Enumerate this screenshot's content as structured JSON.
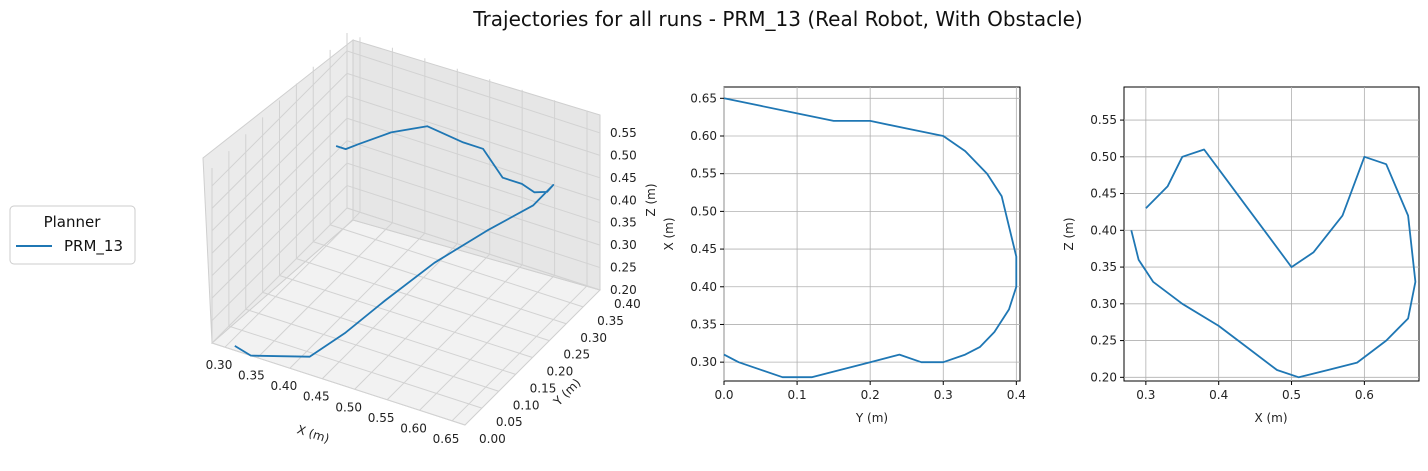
{
  "title": "Trajectories for all runs - PRM_13 (Real Robot, With Obstacle)",
  "legend": {
    "title": "Planner",
    "entries": [
      {
        "label": "PRM_13",
        "color": "#1f77b4"
      }
    ],
    "placement": "left"
  },
  "chart_data": [
    {
      "type": "line",
      "projection": "3d",
      "xlabel": "X (m)",
      "ylabel": "Y (m)",
      "zlabel": "Z (m)",
      "xticks": [
        "0.30",
        "0.35",
        "0.40",
        "0.45",
        "0.50",
        "0.55",
        "0.60",
        "0.65"
      ],
      "yticks": [
        "0.00",
        "0.05",
        "0.10",
        "0.15",
        "0.20",
        "0.25",
        "0.30",
        "0.35",
        "0.40"
      ],
      "zticks": [
        "0.20",
        "0.25",
        "0.30",
        "0.35",
        "0.40",
        "0.45",
        "0.50",
        "0.55"
      ],
      "xlim": [
        0.28,
        0.67
      ],
      "ylim": [
        0,
        0.4
      ],
      "zlim": [
        0.2,
        0.59
      ],
      "grid": true,
      "series": [
        {
          "name": "PRM_13",
          "color": "#1f77b4",
          "x": [
            0.31,
            0.33,
            0.36,
            0.4,
            0.44,
            0.48,
            0.5,
            0.52,
            0.56,
            0.6,
            0.63,
            0.65,
            0.64,
            0.6,
            0.55,
            0.5,
            0.46,
            0.42,
            0.38,
            0.34,
            0.31
          ],
          "y": [
            0.31,
            0.3,
            0.28,
            0.3,
            0.33,
            0.36,
            0.38,
            0.4,
            0.38,
            0.34,
            0.32,
            0.3,
            0.26,
            0.2,
            0.14,
            0.09,
            0.05,
            0.02,
            0.01,
            0.0,
            0.01
          ],
          "z": [
            0.42,
            0.43,
            0.47,
            0.5,
            0.51,
            0.47,
            0.45,
            0.38,
            0.4,
            0.43,
            0.46,
            0.5,
            0.48,
            0.45,
            0.4,
            0.33,
            0.27,
            0.22,
            0.21,
            0.2,
            0.2
          ]
        }
      ]
    },
    {
      "type": "line",
      "xlabel": "Y (m)",
      "ylabel": "X (m)",
      "xticks": [
        "0.0",
        "0.1",
        "0.2",
        "0.3",
        "0.4"
      ],
      "yticks": [
        "0.30",
        "0.35",
        "0.40",
        "0.45",
        "0.50",
        "0.55",
        "0.60",
        "0.65"
      ],
      "xlim": [
        0.0,
        0.405
      ],
      "ylim": [
        0.275,
        0.665
      ],
      "grid": true,
      "series": [
        {
          "name": "PRM_13",
          "color": "#1f77b4",
          "x": [
            0.0,
            0.05,
            0.1,
            0.15,
            0.2,
            0.25,
            0.3,
            0.33,
            0.36,
            0.38,
            0.39,
            0.4,
            0.4,
            0.39,
            0.37,
            0.35,
            0.33,
            0.3,
            0.27,
            0.24,
            0.2,
            0.16,
            0.12,
            0.08,
            0.05,
            0.02,
            0.0
          ],
          "y": [
            0.65,
            0.64,
            0.63,
            0.62,
            0.62,
            0.61,
            0.6,
            0.58,
            0.55,
            0.52,
            0.48,
            0.44,
            0.4,
            0.37,
            0.34,
            0.32,
            0.31,
            0.3,
            0.3,
            0.31,
            0.3,
            0.29,
            0.28,
            0.28,
            0.29,
            0.3,
            0.31
          ]
        }
      ]
    },
    {
      "type": "line",
      "xlabel": "X (m)",
      "ylabel": "Z (m)",
      "xticks": [
        "0.3",
        "0.4",
        "0.5",
        "0.6"
      ],
      "yticks": [
        "0.20",
        "0.25",
        "0.30",
        "0.35",
        "0.40",
        "0.45",
        "0.50",
        "0.55"
      ],
      "xlim": [
        0.27,
        0.675
      ],
      "ylim": [
        0.195,
        0.595
      ],
      "grid": true,
      "series": [
        {
          "name": "PRM_13",
          "color": "#1f77b4",
          "x": [
            0.3,
            0.33,
            0.35,
            0.38,
            0.41,
            0.44,
            0.47,
            0.5,
            0.53,
            0.57,
            0.6,
            0.63,
            0.66,
            0.67,
            0.66,
            0.63,
            0.59,
            0.55,
            0.51,
            0.48,
            0.44,
            0.4,
            0.35,
            0.31,
            0.29,
            0.28
          ],
          "y": [
            0.43,
            0.46,
            0.5,
            0.51,
            0.47,
            0.43,
            0.39,
            0.35,
            0.37,
            0.42,
            0.5,
            0.49,
            0.42,
            0.33,
            0.28,
            0.25,
            0.22,
            0.21,
            0.2,
            0.21,
            0.24,
            0.27,
            0.3,
            0.33,
            0.36,
            0.4
          ]
        }
      ]
    }
  ]
}
